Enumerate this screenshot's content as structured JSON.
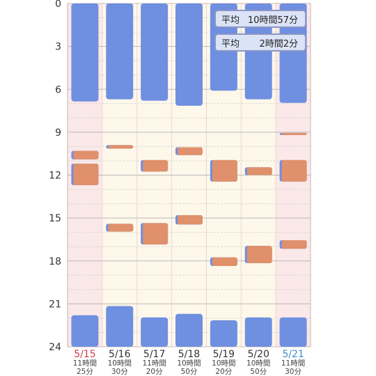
{
  "chart_data": {
    "type": "bar",
    "ylim": [
      0,
      24
    ],
    "y_ticks": [
      "0",
      "3",
      "6",
      "9",
      "12",
      "15",
      "18",
      "21",
      "24"
    ],
    "days": [
      {
        "date": "5/15",
        "total_line1": "11時間",
        "total_line2": "25分",
        "date_color": "#d23a48",
        "weekend": true,
        "segments": [
          {
            "type": "main",
            "start": 0,
            "end": 6.85
          },
          {
            "type": "nap",
            "start": 10.3,
            "end": 10.9
          },
          {
            "type": "nap",
            "start": 11.2,
            "end": 12.7
          },
          {
            "type": "main",
            "start": 21.8,
            "end": 24
          }
        ]
      },
      {
        "date": "5/16",
        "total_line1": "10時間",
        "total_line2": "30分",
        "date_color": "#333333",
        "weekend": false,
        "segments": [
          {
            "type": "main",
            "start": 0,
            "end": 6.7
          },
          {
            "type": "nap",
            "start": 9.9,
            "end": 10.15
          },
          {
            "type": "nap",
            "start": 15.4,
            "end": 15.95
          },
          {
            "type": "main",
            "start": 21.15,
            "end": 24
          }
        ]
      },
      {
        "date": "5/17",
        "total_line1": "11時間",
        "total_line2": "20分",
        "date_color": "#333333",
        "weekend": false,
        "segments": [
          {
            "type": "main",
            "start": 0,
            "end": 6.8
          },
          {
            "type": "nap",
            "start": 10.95,
            "end": 11.75
          },
          {
            "type": "nap",
            "start": 15.35,
            "end": 16.85
          },
          {
            "type": "main",
            "start": 21.95,
            "end": 24
          }
        ]
      },
      {
        "date": "5/18",
        "total_line1": "10時間",
        "total_line2": "50分",
        "date_color": "#333333",
        "weekend": false,
        "segments": [
          {
            "type": "main",
            "start": 0,
            "end": 7.15
          },
          {
            "type": "nap",
            "start": 10.05,
            "end": 10.6
          },
          {
            "type": "nap",
            "start": 14.8,
            "end": 15.45
          },
          {
            "type": "main",
            "start": 21.7,
            "end": 24
          }
        ]
      },
      {
        "date": "5/19",
        "total_line1": "10時間",
        "total_line2": "20分",
        "date_color": "#333333",
        "weekend": false,
        "segments": [
          {
            "type": "main",
            "start": 0,
            "end": 6.1
          },
          {
            "type": "nap",
            "start": 10.95,
            "end": 12.45
          },
          {
            "type": "nap",
            "start": 17.75,
            "end": 18.35
          },
          {
            "type": "main",
            "start": 22.15,
            "end": 24
          }
        ]
      },
      {
        "date": "5/20",
        "total_line1": "10時間",
        "total_line2": "50分",
        "date_color": "#333333",
        "weekend": false,
        "segments": [
          {
            "type": "main",
            "start": 0,
            "end": 6.7
          },
          {
            "type": "nap",
            "start": 11.45,
            "end": 12.0
          },
          {
            "type": "nap",
            "start": 16.95,
            "end": 18.15
          },
          {
            "type": "main",
            "start": 21.95,
            "end": 24
          }
        ]
      },
      {
        "date": "5/21",
        "total_line1": "11時間",
        "total_line2": "30分",
        "date_color": "#3f8ccc",
        "weekend": true,
        "segments": [
          {
            "type": "main",
            "start": 0,
            "end": 6.95
          },
          {
            "type": "nap",
            "start": 9.05,
            "end": 9.2
          },
          {
            "type": "nap",
            "start": 10.95,
            "end": 12.45
          },
          {
            "type": "nap",
            "start": 16.55,
            "end": 17.15
          },
          {
            "type": "main",
            "start": 21.95,
            "end": 24
          }
        ]
      }
    ]
  },
  "summary": {
    "avg_label": "平均",
    "avg_sleep": "10時間57分",
    "avg_nap": "2時間2分"
  },
  "colors": {
    "main_sleep": "#6f8fe0",
    "nap_body": "#e0906a",
    "nap_edge": "#6f8fe0",
    "col_shade_weekend": "#fbe8e8",
    "col_shade_weekday": "#fdf8ea"
  }
}
